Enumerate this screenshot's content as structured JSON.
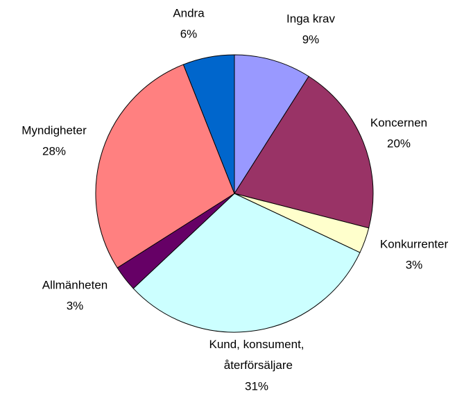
{
  "chart_data": {
    "type": "pie",
    "categories": [
      "Inga krav",
      "Koncernen",
      "Konkurrenter",
      "Kund, konsument, återförsäljare",
      "Allmänheten",
      "Myndigheter",
      "Andra"
    ],
    "values": [
      9,
      20,
      3,
      31,
      3,
      28,
      6
    ],
    "value_labels": [
      "9%",
      "20%",
      "3%",
      "31%",
      "3%",
      "28%",
      "6%"
    ],
    "colors": [
      "#9999ff",
      "#993366",
      "#ffffcc",
      "#ccffff",
      "#660066",
      "#ff8080",
      "#0066cc"
    ]
  }
}
